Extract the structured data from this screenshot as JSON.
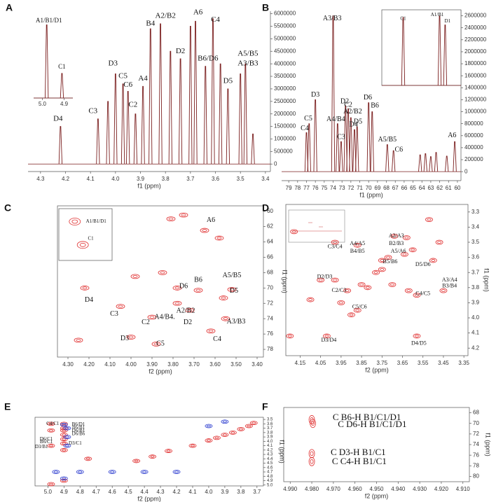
{
  "chart_data": [
    {
      "type": "spectrum",
      "label": "A",
      "xlabel": "f1 (ppm)",
      "color": "#7b1f1f",
      "xlim": [
        4.35,
        3.38
      ],
      "xticks": [
        4.3,
        4.2,
        4.1,
        {
          "value": 4,
          "label": "4.0"
        },
        3.9,
        3.8,
        3.7,
        3.6,
        3.5,
        3.4
      ],
      "ylim": [
        -300000,
        6100000
      ],
      "yticks": [
        0,
        500000,
        1000000,
        1500000,
        2000000,
        2500000,
        3000000,
        3500000,
        4000000,
        4500000,
        5000000,
        5500000,
        6000000
      ],
      "x": [
        4.22,
        4.07,
        4.03,
        4.0,
        3.97,
        3.95,
        3.92,
        3.89,
        3.86,
        3.82,
        3.78,
        3.74,
        3.7,
        3.68,
        3.64,
        3.61,
        3.58,
        3.55,
        3.5,
        3.48,
        3.45
      ],
      "values": [
        1500000,
        1800000,
        2500000,
        3600000,
        3200000,
        2900000,
        2000000,
        3100000,
        5400000,
        5600000,
        4500000,
        4200000,
        5500000,
        5700000,
        3900000,
        5800000,
        4000000,
        3000000,
        3600000,
        4000000,
        1200000
      ],
      "annotations": [
        {
          "text": "D4",
          "x": 4.23,
          "y": 1800000
        },
        {
          "text": "C3",
          "x": 4.09,
          "y": 2100000
        },
        {
          "text": "D3",
          "x": 4.01,
          "y": 4000000
        },
        {
          "text": "C5",
          "x": 3.97,
          "y": 3500000
        },
        {
          "text": "C6",
          "x": 3.95,
          "y": 3150000
        },
        {
          "text": "C2",
          "x": 3.93,
          "y": 2350000
        },
        {
          "text": "A4",
          "x": 3.89,
          "y": 3400000
        },
        {
          "text": "B4",
          "x": 3.86,
          "y": 5600000
        },
        {
          "text": "A2/B2",
          "x": 3.8,
          "y": 5900000
        },
        {
          "text": "A6",
          "x": 3.67,
          "y": 6050000
        },
        {
          "text": "D2",
          "x": 3.74,
          "y": 4500000
        },
        {
          "text": "B6/D6",
          "x": 3.63,
          "y": 4200000
        },
        {
          "text": "C4",
          "x": 3.6,
          "y": 5750000
        },
        {
          "text": "D5",
          "x": 3.55,
          "y": 3300000
        },
        {
          "text": "A5/B5",
          "x": 3.47,
          "y": 4400000
        },
        {
          "text": "A3/B3",
          "x": 3.47,
          "y": 4000000
        }
      ],
      "inset": {
        "type": "spectrum",
        "color": "#7b1f1f",
        "xlim": [
          5.04,
          4.86
        ],
        "xticks": [
          {
            "value": 5,
            "label": "5.0"
          },
          4.9
        ],
        "ylim": [
          0,
          100
        ],
        "x": [
          4.98,
          4.91
        ],
        "values": [
          95,
          32
        ],
        "annotations": [
          {
            "text": "A1/B1/D1",
            "x": 4.97,
            "y": 100
          },
          {
            "text": "C1",
            "x": 4.91,
            "y": 40
          }
        ]
      }
    },
    {
      "type": "spectrum",
      "label": "B",
      "xlabel": "f1 (ppm)",
      "color": "#7b1f1f",
      "xlim": [
        79.8,
        59.6
      ],
      "xticks": [
        79,
        78,
        77,
        76,
        75,
        74,
        73,
        72,
        71,
        70,
        69,
        68,
        67,
        66,
        65,
        64,
        63,
        62,
        61,
        60
      ],
      "ylim": [
        -150000,
        2700000
      ],
      "yticks": [
        0,
        200000,
        400000,
        600000,
        800000,
        1000000,
        1200000,
        1400000,
        1600000,
        1800000,
        2000000,
        2200000,
        2400000,
        2600000
      ],
      "x": [
        77.0,
        76.7,
        76.0,
        74.0,
        73.5,
        73.1,
        72.6,
        72.3,
        72.0,
        71.6,
        71.3,
        70.0,
        69.6,
        67.9,
        67.2,
        64.2,
        63.6,
        63.0,
        62.4,
        61.2,
        60.3
      ],
      "values": [
        650000,
        800000,
        1200000,
        2600000,
        800000,
        500000,
        1100000,
        1050000,
        900000,
        700000,
        750000,
        1150000,
        1000000,
        450000,
        350000,
        280000,
        300000,
        250000,
        320000,
        260000,
        500000
      ],
      "annotations": [
        {
          "text": "C4",
          "x": 77.2,
          "y": 720000
        },
        {
          "text": "C5",
          "x": 76.8,
          "y": 880000
        },
        {
          "text": "D3",
          "x": 76.0,
          "y": 1280000
        },
        {
          "text": "A3/B3",
          "x": 74.1,
          "y": 2550000
        },
        {
          "text": "A4/B4",
          "x": 73.7,
          "y": 870000
        },
        {
          "text": "C3",
          "x": 73.1,
          "y": 570000
        },
        {
          "text": "D2",
          "x": 72.7,
          "y": 1170000
        },
        {
          "text": "C2",
          "x": 72.3,
          "y": 1110000
        },
        {
          "text": "A2/B2",
          "x": 71.8,
          "y": 1000000
        },
        {
          "text": "D4",
          "x": 71.7,
          "y": 780000
        },
        {
          "text": "D5",
          "x": 71.2,
          "y": 830000
        },
        {
          "text": "D6",
          "x": 70.1,
          "y": 1230000
        },
        {
          "text": "B6",
          "x": 69.3,
          "y": 1100000
        },
        {
          "text": "A5/B5",
          "x": 67.9,
          "y": 530000
        },
        {
          "text": "C6",
          "x": 66.6,
          "y": 360000
        },
        {
          "text": "A6",
          "x": 60.6,
          "y": 600000
        }
      ],
      "inset": {
        "type": "spectrum",
        "color": "#7b1f1f",
        "frame": true,
        "xlim": [
          100,
          0
        ],
        "ylim": [
          0,
          100
        ],
        "x": [
          73,
          27,
          20
        ],
        "values": [
          90,
          92,
          80
        ],
        "annotations": [
          {
            "text": "C1",
            "x": 73,
            "y": 88
          },
          {
            "text": "A1/B1",
            "x": 30,
            "y": 93
          },
          {
            "text": "D1",
            "x": 17,
            "y": 85
          }
        ]
      }
    },
    {
      "type": "contour",
      "label": "C",
      "xlabel": "f2 (ppm)",
      "ylabel": "f1 (ppm)",
      "y_reversed": true,
      "frame": true,
      "xlim": [
        4.35,
        3.37
      ],
      "xticks": [
        {
          "value": 4.3,
          "label": "4.30"
        },
        {
          "value": 4.2,
          "label": "4.20"
        },
        {
          "value": 4.1,
          "label": "4.10"
        },
        {
          "value": 4,
          "label": "4.00"
        },
        {
          "value": 3.9,
          "label": "3.90"
        },
        {
          "value": 3.8,
          "label": "3.80"
        },
        {
          "value": 3.7,
          "label": "3.70"
        },
        {
          "value": 3.6,
          "label": "3.60"
        },
        {
          "value": 3.5,
          "label": "3.50"
        },
        {
          "value": 3.4,
          "label": "3.40"
        }
      ],
      "ylim": [
        59.3,
        79
      ],
      "yticks": [
        60,
        62,
        64,
        66,
        68,
        70,
        72,
        74,
        76,
        78
      ],
      "series": [
        {
          "color": "#e03030",
          "x": [
            3.65,
            3.58,
            3.52,
            3.56,
            3.68,
            3.78,
            3.72,
            3.78,
            3.9,
            4.05,
            4.22,
            3.55,
            3.62,
            3.88,
            4.0,
            4.25,
            3.85,
            3.98,
            3.81,
            3.75
          ],
          "y": [
            62.5,
            63.5,
            70.2,
            71.3,
            70.3,
            70.0,
            72.9,
            72.0,
            73.8,
            72.4,
            70.0,
            74.0,
            75.6,
            77.3,
            76.4,
            76.8,
            68.0,
            68.5,
            61.0,
            60.5
          ]
        }
      ],
      "annotations": [
        {
          "text": "A6",
          "x": 3.62,
          "y": 61.2
        },
        {
          "text": "A5/B5",
          "x": 3.52,
          "y": 68.4
        },
        {
          "text": "D5",
          "x": 3.51,
          "y": 70.4
        },
        {
          "text": "B6",
          "x": 3.68,
          "y": 69.0
        },
        {
          "text": "D6",
          "x": 3.75,
          "y": 69.8
        },
        {
          "text": "A2/B2",
          "x": 3.74,
          "y": 73.0
        },
        {
          "text": "D2",
          "x": 3.73,
          "y": 74.5
        },
        {
          "text": "A4/B4.",
          "x": 3.84,
          "y": 73.8
        },
        {
          "text": "C2",
          "x": 3.93,
          "y": 74.5
        },
        {
          "text": "C3",
          "x": 4.08,
          "y": 73.4
        },
        {
          "text": "D4",
          "x": 4.2,
          "y": 71.6
        },
        {
          "text": "A3/B3",
          "x": 3.5,
          "y": 74.4
        },
        {
          "text": "C4",
          "x": 3.59,
          "y": 76.7
        },
        {
          "text": "C5",
          "x": 3.86,
          "y": 77.3
        },
        {
          "text": "D3",
          "x": 4.03,
          "y": 76.6
        }
      ],
      "inset": {
        "type": "contour",
        "frame": true,
        "y_reversed": true,
        "xlim": [
          100,
          0
        ],
        "ylim": [
          0,
          100
        ],
        "series": [
          {
            "color": "#e03030",
            "x": [
              70,
              55
            ],
            "y": [
              25,
              70
            ]
          }
        ],
        "annotations": [
          {
            "text": "A1/B1/D1",
            "x": 30,
            "y": 25
          },
          {
            "text": "C1",
            "x": 40,
            "y": 58
          }
        ]
      }
    },
    {
      "type": "contour",
      "label": "D",
      "xlabel": "f2 (ppm)",
      "ylabel": "f1 (ppm)",
      "y_reversed": true,
      "frame": true,
      "xlim": [
        4.22,
        3.33
      ],
      "xticks": [
        4.15,
        4.05,
        3.95,
        3.85,
        3.75,
        3.65,
        3.55,
        3.45,
        3.35
      ],
      "ylim": [
        3.25,
        4.25
      ],
      "yticks": [
        3.3,
        3.4,
        3.5,
        3.6,
        3.7,
        3.8,
        3.9,
        {
          "value": 4,
          "label": "4.0"
        },
        4.1,
        4.2
      ],
      "series": [
        {
          "color": "#e03030",
          "x": [
            4.18,
            3.98,
            3.87,
            3.69,
            3.63,
            3.6,
            3.64,
            3.72,
            3.75,
            3.5,
            3.47,
            4.05,
            3.98,
            3.92,
            3.85,
            3.82,
            3.78,
            3.75,
            3.7,
            3.87,
            3.9,
            3.95,
            4.1,
            3.58,
            3.45,
            4.02,
            3.58,
            3.52,
            3.62,
            4.2
          ],
          "y": [
            3.43,
            3.5,
            3.52,
            3.46,
            3.47,
            3.55,
            3.58,
            3.6,
            3.62,
            3.62,
            3.5,
            3.75,
            3.75,
            3.82,
            3.78,
            3.8,
            3.7,
            3.68,
            3.78,
            3.95,
            3.98,
            3.9,
            3.88,
            3.85,
            3.82,
            4.12,
            4.12,
            3.35,
            3.82,
            4.12
          ]
        }
      ],
      "annotations": [
        {
          "text": "C3/C4",
          "x": 3.98,
          "y": 3.53
        },
        {
          "text": "A4/A5",
          "x": 3.87,
          "y": 3.51
        },
        {
          "text": "B4/B5",
          "x": 3.87,
          "y": 3.56
        },
        {
          "text": "A2/A3",
          "x": 3.68,
          "y": 3.46
        },
        {
          "text": "B2/B3",
          "x": 3.68,
          "y": 3.51
        },
        {
          "text": "A5/A6",
          "x": 3.67,
          "y": 3.56
        },
        {
          "text": "B5/B6",
          "x": 3.71,
          "y": 3.63
        },
        {
          "text": "D5/D6",
          "x": 3.55,
          "y": 3.65
        },
        {
          "text": "D2/D3",
          "x": 4.03,
          "y": 3.73
        },
        {
          "text": "C2/C3",
          "x": 3.96,
          "y": 3.82
        },
        {
          "text": "C5/C6",
          "x": 3.86,
          "y": 3.93
        },
        {
          "text": "A3/A4",
          "x": 3.42,
          "y": 3.75
        },
        {
          "text": "B3/B4",
          "x": 3.42,
          "y": 3.79
        },
        {
          "text": "C4/C5",
          "x": 3.55,
          "y": 3.84
        },
        {
          "text": "D3/D4",
          "x": 4.01,
          "y": 4.15
        },
        {
          "text": "D4/D5",
          "x": 3.57,
          "y": 4.17
        }
      ]
    },
    {
      "type": "contour",
      "label": "E",
      "xlabel": "f2 (ppm)",
      "ylabel": "f1 (ppm)",
      "y_reversed": true,
      "frame": true,
      "xlim": [
        5.08,
        3.66
      ],
      "xticks": [
        {
          "value": 5,
          "label": "5.0"
        },
        4.9,
        4.8,
        4.7,
        4.6,
        4.5,
        4.4,
        4.3,
        4.2,
        4.1,
        {
          "value": 4,
          "label": "4.0"
        },
        3.9,
        3.8,
        3.7
      ],
      "ylim": [
        3.45,
        5.02
      ],
      "yticks": [
        3.5,
        3.6,
        3.7,
        3.8,
        3.9,
        {
          "value": 4,
          "label": "4.0"
        },
        4.1,
        4.2,
        4.3,
        4.4,
        4.5,
        4.6,
        4.7,
        4.8,
        4.9,
        {
          "value": 5,
          "label": "5.0"
        }
      ],
      "series": [
        {
          "color": "#e03030",
          "x": [
            4.45,
            4.35,
            4.25,
            4.1,
            4.0,
            3.95,
            3.9,
            3.85,
            3.8,
            3.75,
            3.72,
            4.98,
            4.9,
            4.9,
            4.9,
            4.9,
            4.9,
            4.9,
            4.9,
            4.9,
            4.98,
            4.98,
            4.98,
            4.75
          ],
          "y": [
            4.45,
            4.35,
            4.22,
            4.1,
            3.98,
            3.92,
            3.85,
            3.8,
            3.72,
            3.65,
            3.58,
            4.98,
            4.9,
            3.6,
            3.7,
            3.75,
            3.85,
            3.95,
            4.05,
            4.2,
            3.6,
            3.75,
            4.1,
            4.4
          ]
        },
        {
          "color": "#3040d0",
          "x": [
            4.9,
            4.88,
            4.88,
            4.88,
            4.95,
            4.8,
            4.6,
            4.4,
            4.2,
            3.9,
            4.0,
            4.9
          ],
          "y": [
            3.62,
            3.7,
            3.9,
            4.1,
            4.7,
            4.7,
            4.7,
            4.7,
            4.7,
            3.55,
            3.65,
            4.85
          ]
        }
      ],
      "annotations": [
        {
          "text": "C4/C1",
          "x": 4.97,
          "y": 3.6
        },
        {
          "text": "B6/D1",
          "x": 4.81,
          "y": 3.62
        },
        {
          "text": "B6/B1",
          "x": 4.81,
          "y": 3.69
        },
        {
          "text": "D6/B1",
          "x": 4.81,
          "y": 3.76
        },
        {
          "text": "D6/B6",
          "x": 4.81,
          "y": 3.83
        },
        {
          "text": "D6/C1",
          "x": 5.01,
          "y": 3.95
        },
        {
          "text": "B6/C1",
          "x": 5.01,
          "y": 4.02
        },
        {
          "text": "D3/C1",
          "x": 4.83,
          "y": 4.05
        },
        {
          "text": "D3/B1",
          "x": 5.04,
          "y": 4.13
        }
      ]
    },
    {
      "type": "contour",
      "label": "F",
      "xlabel": "f2 (ppm)",
      "ylabel": "f1 (ppm)",
      "y_reversed": true,
      "frame": true,
      "xlim": [
        4.993,
        4.907
      ],
      "xticks": [
        {
          "value": 4.99,
          "label": "4.990"
        },
        {
          "value": 4.98,
          "label": "4.980"
        },
        {
          "value": 4.97,
          "label": "4.970"
        },
        {
          "value": 4.96,
          "label": "4.960"
        },
        {
          "value": 4.95,
          "label": "4.950"
        },
        {
          "value": 4.94,
          "label": "4.940"
        },
        {
          "value": 4.93,
          "label": "4.930"
        },
        {
          "value": 4.92,
          "label": "4.920"
        },
        {
          "value": 4.91,
          "label": "4.910"
        }
      ],
      "ylim": [
        67,
        81
      ],
      "yticks": [
        68,
        70,
        72,
        74,
        76,
        78,
        80
      ],
      "series": [
        {
          "color": "#e03030",
          "x": [
            4.98,
            4.9795,
            4.98,
            4.98
          ],
          "y": [
            69.3,
            70.0,
            75.7,
            77.2
          ]
        }
      ],
      "annotations": [
        {
          "text": "C B6-H B1/C1/D1",
          "x": 4.9545,
          "y": 69.0
        },
        {
          "text": "C D6-H B1/C1/D1",
          "x": 4.952,
          "y": 70.3
        },
        {
          "text": "C D3-H B1/C1",
          "x": 4.9585,
          "y": 75.6
        },
        {
          "text": "C C4-H B1/C1",
          "x": 4.958,
          "y": 77.3
        }
      ]
    }
  ]
}
